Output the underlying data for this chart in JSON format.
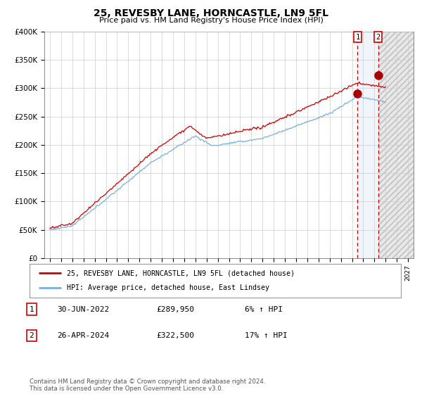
{
  "title": "25, REVESBY LANE, HORNCASTLE, LN9 5FL",
  "subtitle": "Price paid vs. HM Land Registry's House Price Index (HPI)",
  "ylabel_ticks": [
    "£0",
    "£50K",
    "£100K",
    "£150K",
    "£200K",
    "£250K",
    "£300K",
    "£350K",
    "£400K"
  ],
  "ylabel_values": [
    0,
    50000,
    100000,
    150000,
    200000,
    250000,
    300000,
    350000,
    400000
  ],
  "ylim": [
    0,
    400000
  ],
  "xlim_start": 1994.5,
  "xlim_end": 2027.5,
  "xticks": [
    1995,
    1996,
    1997,
    1998,
    1999,
    2000,
    2001,
    2002,
    2003,
    2004,
    2005,
    2006,
    2007,
    2008,
    2009,
    2010,
    2011,
    2012,
    2013,
    2014,
    2015,
    2016,
    2017,
    2018,
    2019,
    2020,
    2021,
    2022,
    2023,
    2024,
    2025,
    2026,
    2027
  ],
  "hpi_color": "#7ab0de",
  "price_color": "#cc0000",
  "marker_color": "#aa0000",
  "point1_x": 2022.5,
  "point1_y": 289950,
  "point2_x": 2024.33,
  "point2_y": 322500,
  "dashed_line1_x": 2022.5,
  "dashed_line2_x": 2024.33,
  "shade_start": 2022.5,
  "shade_end": 2024.33,
  "hatch_start": 2024.33,
  "hatch_end": 2027.5,
  "legend_label1": "25, REVESBY LANE, HORNCASTLE, LN9 5FL (detached house)",
  "legend_label2": "HPI: Average price, detached house, East Lindsey",
  "table_rows": [
    {
      "num": "1",
      "date": "30-JUN-2022",
      "price": "£289,950",
      "change": "6% ↑ HPI"
    },
    {
      "num": "2",
      "date": "26-APR-2024",
      "price": "£322,500",
      "change": "17% ↑ HPI"
    }
  ],
  "footnote": "Contains HM Land Registry data © Crown copyright and database right 2024.\nThis data is licensed under the Open Government Licence v3.0.",
  "bg_color": "#ffffff",
  "grid_color": "#cccccc",
  "plot_bg": "#ffffff"
}
